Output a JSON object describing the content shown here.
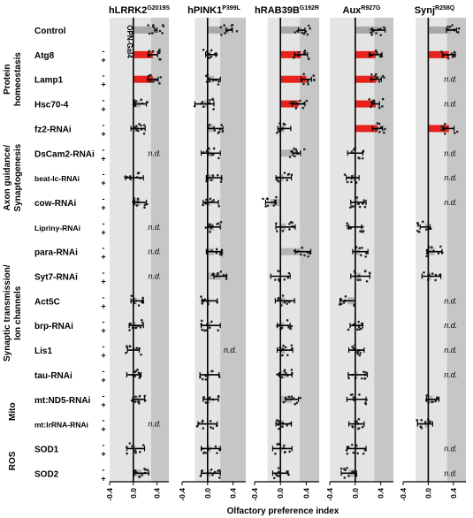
{
  "chart_data": {
    "type": "bar",
    "xlabel": "Olfactory preference index",
    "xlim": [
      -0.4,
      0.6
    ],
    "xticks": [
      "-0.4",
      "0.0",
      "0.4"
    ],
    "genotype_column_label": "OPN-Gal4",
    "nd_label": "n.d.",
    "colors": {
      "control_bar": "#a9a9a9",
      "significant_bar": "#e8231d",
      "normal_bar": "#b4b4b4",
      "shade_outer": "#e4e4e4",
      "shade_inner": "#c6c6c6",
      "dot": "#222222"
    },
    "groups": [
      {
        "label": "Protein homeostasis",
        "lines": [
          "Protein",
          "homeostasis"
        ]
      },
      {
        "label": "Axon guidance/ Synaptogenesis",
        "lines": [
          "Axon guidance/",
          "Synaptogenesis"
        ]
      },
      {
        "label": "Synaptic transmission/ Ion channels",
        "lines": [
          "Synaptic transmission/",
          "Ion channels"
        ]
      },
      {
        "label": "Mito",
        "lines": [
          "Mito"
        ]
      },
      {
        "label": "ROS",
        "lines": [
          "ROS"
        ]
      }
    ],
    "rows": [
      {
        "label": "Control",
        "gal4": ""
      },
      {
        "label": "Atg8",
        "gal4": "+"
      },
      {
        "label": "Lamp1",
        "gal4": "+"
      },
      {
        "label": "Hsc70-4",
        "gal4": "+"
      },
      {
        "label": "fz2-RNAi",
        "gal4": "+"
      },
      {
        "label": "DsCam2-RNAi",
        "gal4": "+"
      },
      {
        "label": "beat-Ic-RNAi",
        "gal4": "+"
      },
      {
        "label": "cow-RNAi",
        "gal4": "+"
      },
      {
        "label": "Lipriny-RNAi",
        "gal4": "+"
      },
      {
        "label": "para-RNAi",
        "gal4": "+"
      },
      {
        "label": "Syt7-RNAi",
        "gal4": "+"
      },
      {
        "label": "Act5C",
        "gal4": "+"
      },
      {
        "label": "brp-RNAi",
        "gal4": "+"
      },
      {
        "label": "Lis1",
        "gal4": "+"
      },
      {
        "label": "tau-RNAi",
        "gal4": "+"
      },
      {
        "label": "mt:ND5-RNAi",
        "gal4": "+"
      },
      {
        "label": "mt:lrRNA-RNAi",
        "gal4": "+"
      },
      {
        "label": "SOD1",
        "gal4": "+"
      },
      {
        "label": "SOD2",
        "gal4": "+"
      }
    ],
    "panels": [
      {
        "name": "hLRRK2",
        "sup": "G2019S",
        "shade_outer": [
          -0.4,
          0.6
        ],
        "shade_inner": [
          0.3,
          0.6
        ],
        "values": [
          0.38,
          0.33,
          0.33,
          0.12,
          0.08,
          null,
          0.02,
          0.12,
          null,
          null,
          null,
          0.06,
          0.05,
          0.0,
          0.01,
          0.09,
          null,
          0.04,
          0.14
        ],
        "errors": [
          0.02,
          0.08,
          0.09,
          0.1,
          0.12,
          null,
          0.15,
          0.1,
          null,
          null,
          null,
          0.1,
          0.12,
          0.1,
          0.12,
          0.1,
          null,
          0.15,
          0.12
        ],
        "significant": [
          false,
          true,
          true,
          false,
          false,
          false,
          false,
          false,
          false,
          false,
          false,
          false,
          false,
          false,
          false,
          false,
          false,
          false,
          false
        ]
      },
      {
        "name": "hPINK1",
        "sup": "P399L",
        "shade_outer": [
          -0.2,
          0.6
        ],
        "shade_inner": [
          0.2,
          0.6
        ],
        "values": [
          0.34,
          0.05,
          0.1,
          -0.05,
          0.12,
          0.05,
          0.1,
          0.05,
          0.1,
          0.1,
          0.2,
          0.03,
          0.05,
          null,
          0.03,
          0.05,
          0.0,
          0.05,
          0.05
        ],
        "errors": [
          0.05,
          0.08,
          0.1,
          0.15,
          0.12,
          0.15,
          0.12,
          0.12,
          0.1,
          0.12,
          0.1,
          0.12,
          0.15,
          null,
          0.15,
          0.12,
          0.15,
          0.15,
          0.15
        ],
        "significant": [
          false,
          false,
          false,
          false,
          false,
          false,
          false,
          false,
          false,
          false,
          false,
          false,
          false,
          false,
          false,
          false,
          false,
          false,
          false
        ]
      },
      {
        "name": "hRAB39B",
        "sup": "G192R",
        "shade_outer": [
          -0.2,
          0.6
        ],
        "shade_inner": [
          0.3,
          0.6
        ],
        "values": [
          0.33,
          0.32,
          0.4,
          0.28,
          0.06,
          0.25,
          0.05,
          -0.15,
          0.08,
          0.35,
          0.0,
          0.07,
          0.05,
          0.07,
          0.08,
          0.18,
          0.05,
          0.03,
          0.0
        ],
        "errors": [
          0.05,
          0.1,
          0.08,
          0.1,
          0.1,
          0.06,
          0.12,
          0.08,
          0.15,
          0.12,
          0.15,
          0.15,
          0.1,
          0.12,
          0.1,
          0.1,
          0.12,
          0.15,
          0.12
        ],
        "significant": [
          false,
          true,
          true,
          true,
          false,
          false,
          false,
          false,
          false,
          false,
          false,
          false,
          false,
          false,
          false,
          false,
          false,
          false,
          false
        ]
      },
      {
        "name": "Aux",
        "sup": "R927G",
        "shade_outer": [
          -0.4,
          0.6
        ],
        "shade_inner": [
          0.3,
          0.6
        ],
        "values": [
          0.37,
          0.32,
          0.33,
          0.32,
          0.35,
          0.0,
          -0.04,
          0.05,
          0.0,
          0.08,
          0.08,
          -0.12,
          0.02,
          0.02,
          0.04,
          0.02,
          0.02,
          0.02,
          -0.1
        ],
        "errors": [
          0.1,
          0.1,
          0.08,
          0.06,
          0.08,
          0.12,
          0.1,
          0.12,
          0.1,
          0.12,
          0.15,
          0.12,
          0.1,
          0.12,
          0.15,
          0.15,
          0.12,
          0.15,
          0.12
        ],
        "significant": [
          false,
          true,
          true,
          true,
          true,
          false,
          false,
          false,
          false,
          false,
          false,
          false,
          false,
          false,
          false,
          false,
          false,
          false,
          false
        ]
      },
      {
        "name": "Synj",
        "sup": "R258Q",
        "shade_outer": [
          -0.2,
          0.6
        ],
        "shade_inner": [
          0.3,
          0.6
        ],
        "values": [
          0.37,
          0.33,
          null,
          null,
          0.33,
          null,
          null,
          null,
          -0.05,
          0.1,
          0.05,
          null,
          null,
          null,
          null,
          0.07,
          -0.05,
          null,
          null
        ],
        "errors": [
          0.08,
          0.1,
          null,
          null,
          0.08,
          null,
          null,
          null,
          0.08,
          0.12,
          0.15,
          null,
          null,
          null,
          null,
          0.1,
          0.12,
          null,
          null
        ],
        "significant": [
          false,
          true,
          false,
          false,
          true,
          false,
          false,
          false,
          false,
          false,
          false,
          false,
          false,
          false,
          false,
          false,
          false,
          false,
          false
        ]
      }
    ]
  }
}
